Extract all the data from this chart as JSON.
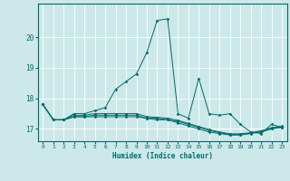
{
  "xlabel": "Humidex (Indice chaleur)",
  "ylabel": "",
  "background_color": "#cce8e8",
  "line_color": "#006b6b",
  "xlim": [
    -0.5,
    23.5
  ],
  "ylim": [
    16.6,
    21.1
  ],
  "yticks": [
    17,
    18,
    19,
    20
  ],
  "xticks": [
    0,
    1,
    2,
    3,
    4,
    5,
    6,
    7,
    8,
    9,
    10,
    11,
    12,
    13,
    14,
    15,
    16,
    17,
    18,
    19,
    20,
    21,
    22,
    23
  ],
  "series": [
    [
      17.8,
      17.3,
      17.3,
      17.4,
      17.4,
      17.4,
      17.4,
      17.4,
      17.4,
      17.4,
      17.35,
      17.3,
      17.3,
      17.2,
      17.1,
      17.0,
      16.9,
      16.85,
      16.8,
      16.8,
      16.85,
      16.9,
      17.0,
      17.05
    ],
    [
      17.8,
      17.3,
      17.3,
      17.5,
      17.5,
      17.6,
      17.7,
      18.3,
      18.55,
      18.8,
      19.5,
      20.55,
      20.6,
      17.5,
      17.35,
      18.65,
      17.5,
      17.45,
      17.5,
      17.15,
      16.9,
      16.85,
      17.15,
      17.05
    ],
    [
      17.8,
      17.3,
      17.3,
      17.4,
      17.4,
      17.45,
      17.45,
      17.45,
      17.45,
      17.45,
      17.35,
      17.35,
      17.3,
      17.25,
      17.15,
      17.05,
      16.95,
      16.88,
      16.82,
      16.82,
      16.86,
      16.92,
      17.02,
      17.07
    ],
    [
      17.8,
      17.3,
      17.3,
      17.45,
      17.45,
      17.5,
      17.5,
      17.5,
      17.5,
      17.5,
      17.4,
      17.38,
      17.35,
      17.28,
      17.18,
      17.08,
      16.98,
      16.9,
      16.84,
      16.84,
      16.88,
      16.94,
      17.04,
      17.09
    ]
  ]
}
